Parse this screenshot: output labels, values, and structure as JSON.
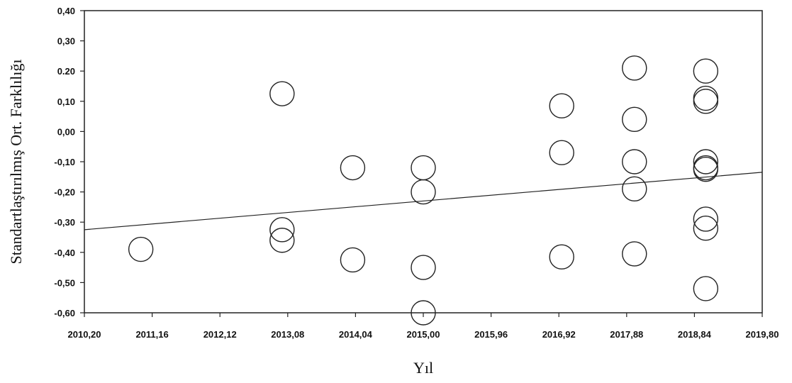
{
  "chart_data": {
    "type": "scatter",
    "title": "",
    "xlabel": "Yıl",
    "ylabel": "Standartlaştırılmış Ort. Farklılığı",
    "xlim": [
      2010.2,
      2019.8
    ],
    "ylim": [
      -0.6,
      0.4
    ],
    "x_ticks": [
      "2010,20",
      "2011,16",
      "2012,12",
      "2013,08",
      "2014,04",
      "2015,00",
      "2015,96",
      "2016,92",
      "2017,88",
      "2018,84",
      "2019,80"
    ],
    "y_ticks": [
      "0,40",
      "0,30",
      "0.20",
      "0,10",
      "0,00",
      "-0,10",
      "-0,20",
      "-0,30",
      "-0,40",
      "-0,50",
      "-0,60"
    ],
    "grid": false,
    "marker": "open-circle",
    "points": [
      {
        "x": 2011.0,
        "y": -0.39
      },
      {
        "x": 2013.0,
        "y": 0.125
      },
      {
        "x": 2013.0,
        "y": -0.325
      },
      {
        "x": 2013.0,
        "y": -0.36
      },
      {
        "x": 2014.0,
        "y": -0.12
      },
      {
        "x": 2014.0,
        "y": -0.425
      },
      {
        "x": 2015.0,
        "y": -0.12
      },
      {
        "x": 2015.0,
        "y": -0.2
      },
      {
        "x": 2015.0,
        "y": -0.45
      },
      {
        "x": 2015.0,
        "y": -0.6
      },
      {
        "x": 2016.96,
        "y": 0.085
      },
      {
        "x": 2016.96,
        "y": -0.07
      },
      {
        "x": 2016.96,
        "y": -0.415
      },
      {
        "x": 2017.99,
        "y": 0.21
      },
      {
        "x": 2017.99,
        "y": 0.04
      },
      {
        "x": 2017.99,
        "y": -0.1
      },
      {
        "x": 2017.99,
        "y": -0.19
      },
      {
        "x": 2017.99,
        "y": -0.405
      },
      {
        "x": 2019.0,
        "y": 0.2
      },
      {
        "x": 2019.0,
        "y": 0.11
      },
      {
        "x": 2019.0,
        "y": 0.1
      },
      {
        "x": 2019.0,
        "y": -0.1
      },
      {
        "x": 2019.0,
        "y": -0.12
      },
      {
        "x": 2019.0,
        "y": -0.125
      },
      {
        "x": 2019.0,
        "y": -0.29
      },
      {
        "x": 2019.0,
        "y": -0.32
      },
      {
        "x": 2019.0,
        "y": -0.52
      }
    ],
    "regression_line": [
      {
        "x": 2010.2,
        "y": -0.325
      },
      {
        "x": 2019.8,
        "y": -0.135
      }
    ]
  }
}
